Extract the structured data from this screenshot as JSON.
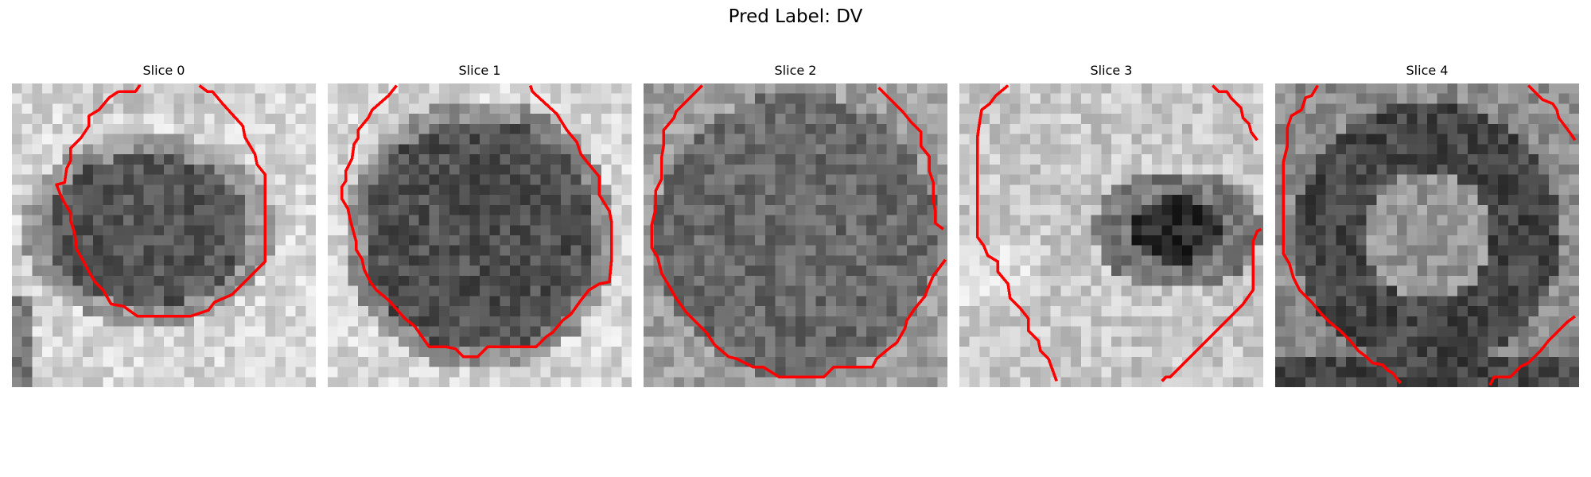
{
  "title": "Pred Label: DV",
  "contour_color": "#ff0000",
  "slices": [
    {
      "label": "Slice 0",
      "pattern": "blob_center"
    },
    {
      "label": "Slice 1",
      "pattern": "large_blob"
    },
    {
      "label": "Slice 2",
      "pattern": "uniform_dark"
    },
    {
      "label": "Slice 3",
      "pattern": "light_with_dark_spot"
    },
    {
      "label": "Slice 4",
      "pattern": "dark_ring"
    }
  ]
}
